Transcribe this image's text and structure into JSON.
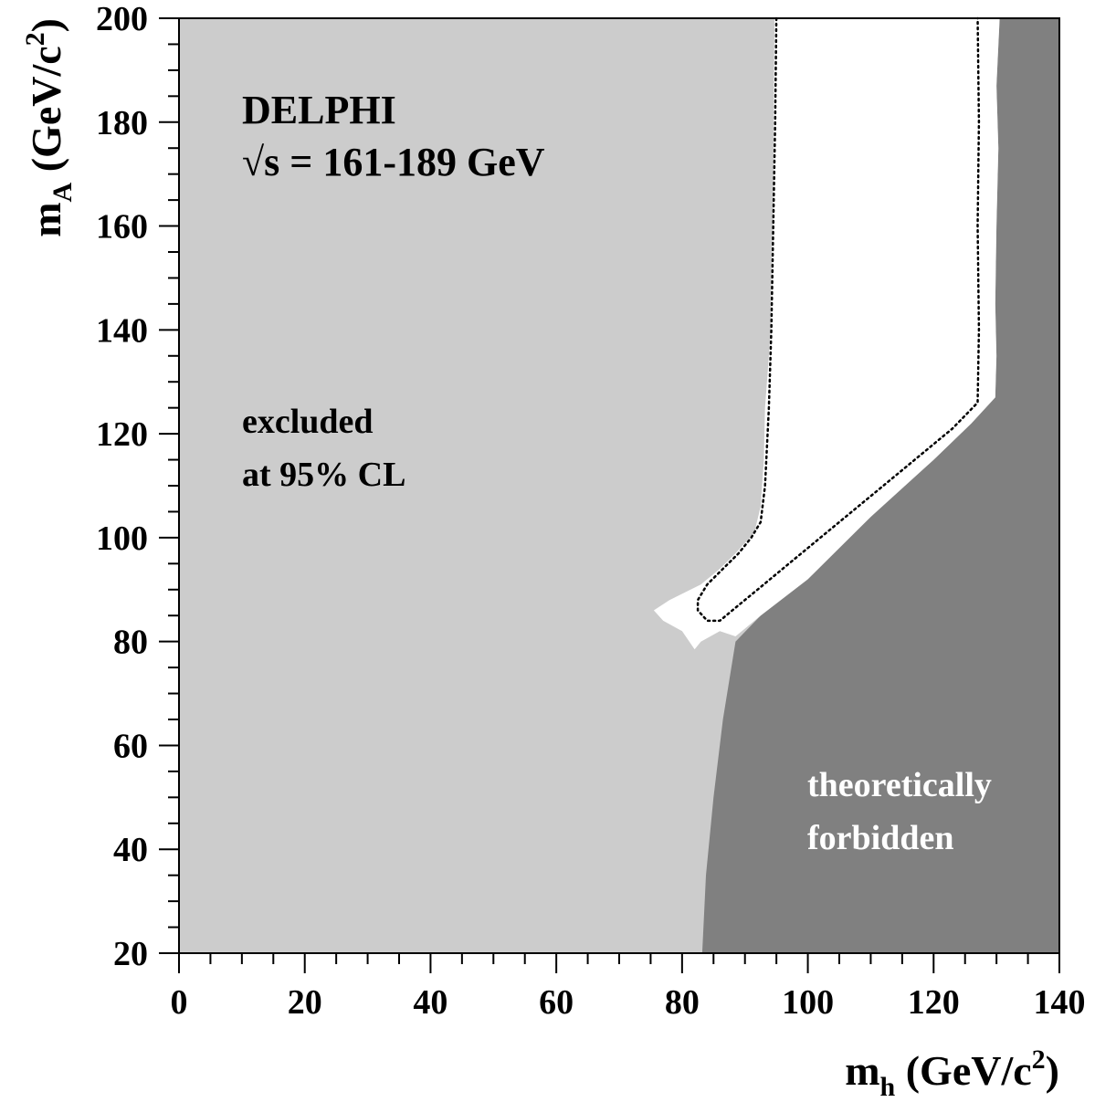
{
  "chart_data": {
    "type": "area",
    "title": "",
    "xlabel": {
      "main": "m",
      "sub": "h",
      "unit_open": " (GeV/c",
      "sup": "2",
      "unit_close": ")"
    },
    "ylabel": {
      "main": "m",
      "sub": "A",
      "unit_open": " (GeV/c",
      "sup": "2",
      "unit_close": ")"
    },
    "xlim": [
      0,
      140
    ],
    "ylim": [
      20,
      200
    ],
    "x_ticks": [
      0,
      20,
      40,
      60,
      80,
      100,
      120,
      140
    ],
    "y_ticks": [
      20,
      40,
      60,
      80,
      100,
      120,
      140,
      160,
      180,
      200
    ],
    "grid": false,
    "annotations": {
      "experiment": "DELPHI",
      "energy": "√s = 161-189 GeV",
      "excluded_line1": "excluded",
      "excluded_line2": "at 95% CL",
      "forbidden_line1": "theoretically",
      "forbidden_line2": "forbidden"
    },
    "colors": {
      "excluded": "#cccccc",
      "forbidden": "#808080",
      "allowed": "#ffffff",
      "expected_line": "#000000"
    },
    "regions": [
      {
        "role": "forbidden",
        "points": [
          [
            83.2,
            20
          ],
          [
            83.8,
            35
          ],
          [
            85,
            50
          ],
          [
            86.5,
            65
          ],
          [
            88.5,
            80
          ],
          [
            92.5,
            85
          ],
          [
            100,
            92
          ],
          [
            110,
            104
          ],
          [
            120,
            115
          ],
          [
            126,
            122
          ],
          [
            129.8,
            127
          ],
          [
            130,
            135
          ],
          [
            129.8,
            145
          ],
          [
            130,
            160
          ],
          [
            130.3,
            175
          ],
          [
            130,
            187
          ],
          [
            130.5,
            200
          ],
          [
            140,
            200
          ],
          [
            140,
            20
          ]
        ]
      },
      {
        "role": "allowed",
        "points": [
          [
            94.7,
            200
          ],
          [
            94.6,
            185
          ],
          [
            94.5,
            165
          ],
          [
            94.2,
            150
          ],
          [
            94.1,
            140
          ],
          [
            93.5,
            130
          ],
          [
            93.2,
            125
          ],
          [
            93,
            115
          ],
          [
            92.5,
            106
          ],
          [
            91.5,
            101
          ],
          [
            90,
            99
          ],
          [
            88.5,
            97
          ],
          [
            86,
            94
          ],
          [
            83,
            91
          ],
          [
            78,
            88
          ],
          [
            75.5,
            86
          ],
          [
            77,
            84
          ],
          [
            80,
            82
          ],
          [
            82,
            78.5
          ],
          [
            83,
            80
          ],
          [
            86,
            82
          ],
          [
            88.5,
            81
          ],
          [
            92.5,
            85
          ],
          [
            100,
            92
          ],
          [
            110,
            104
          ],
          [
            120,
            115
          ],
          [
            126,
            122
          ],
          [
            129.8,
            127
          ],
          [
            130,
            135
          ],
          [
            129.8,
            145
          ],
          [
            130,
            160
          ],
          [
            130.3,
            175
          ],
          [
            130,
            187
          ],
          [
            130.5,
            200
          ]
        ]
      }
    ],
    "series": [
      {
        "role": "expected",
        "points": [
          [
            95,
            200
          ],
          [
            94.8,
            180
          ],
          [
            94.5,
            160
          ],
          [
            94.2,
            140
          ],
          [
            93.8,
            125
          ],
          [
            93.2,
            110
          ],
          [
            92.5,
            103
          ],
          [
            91,
            100
          ],
          [
            89,
            97
          ],
          [
            86.5,
            94
          ],
          [
            84,
            91
          ],
          [
            82.5,
            88
          ],
          [
            82.5,
            86
          ],
          [
            84,
            84
          ],
          [
            86,
            84
          ],
          [
            89,
            87
          ],
          [
            92,
            90
          ],
          [
            96,
            94
          ],
          [
            105,
            103
          ],
          [
            115,
            113
          ],
          [
            123,
            121
          ],
          [
            127,
            126
          ],
          [
            127.2,
            140
          ],
          [
            127,
            160
          ],
          [
            127.2,
            180
          ],
          [
            127,
            200
          ]
        ]
      }
    ]
  }
}
